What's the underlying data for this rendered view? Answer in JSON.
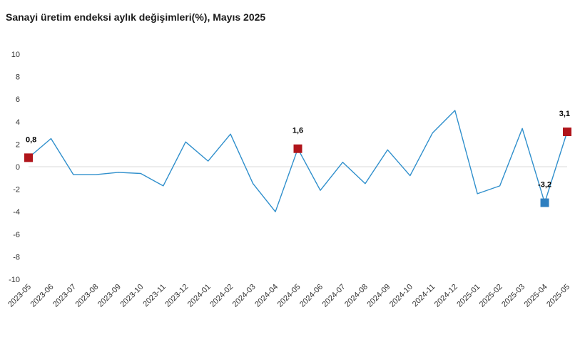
{
  "chart_data": {
    "type": "line",
    "title": "Sanayi üretim endeksi aylık değişimleri(%), Mayıs 2025",
    "categories": [
      "2023-05",
      "2023-06",
      "2023-07",
      "2023-08",
      "2023-09",
      "2023-10",
      "2023-11",
      "2023-12",
      "2024-01",
      "2024-02",
      "2024-03",
      "2024-04",
      "2024-05",
      "2024-06",
      "2024-07",
      "2024-08",
      "2024-09",
      "2024-10",
      "2024-11",
      "2024-12",
      "2025-01",
      "2025-02",
      "2025-03",
      "2025-04",
      "2025-05"
    ],
    "series": [
      {
        "values": [
          0.8,
          2.5,
          -0.7,
          -0.7,
          -0.5,
          -0.6,
          -1.7,
          2.2,
          0.5,
          2.9,
          -1.5,
          -4.0,
          1.6,
          -2.1,
          0.4,
          -1.5,
          1.5,
          -0.8,
          3.0,
          5.0,
          -2.4,
          -1.7,
          3.4,
          -3.2,
          3.1
        ]
      }
    ],
    "highlights": [
      {
        "index": 0,
        "label": "0,8",
        "color": "#B0151B"
      },
      {
        "index": 12,
        "label": "1,6",
        "color": "#B0151B"
      },
      {
        "index": 23,
        "label": "-3,2",
        "color": "#2E7FC0"
      },
      {
        "index": 24,
        "label": "3,1",
        "color": "#B0151B"
      }
    ],
    "ylim": [
      -10,
      10
    ],
    "yticks": [
      10,
      8,
      6,
      4,
      2,
      0,
      -2,
      -4,
      -6,
      -8,
      -10
    ],
    "line_color": "#2F8FCC",
    "zero_line_color": "#D9D9D9",
    "grid": false,
    "legend": "none"
  }
}
